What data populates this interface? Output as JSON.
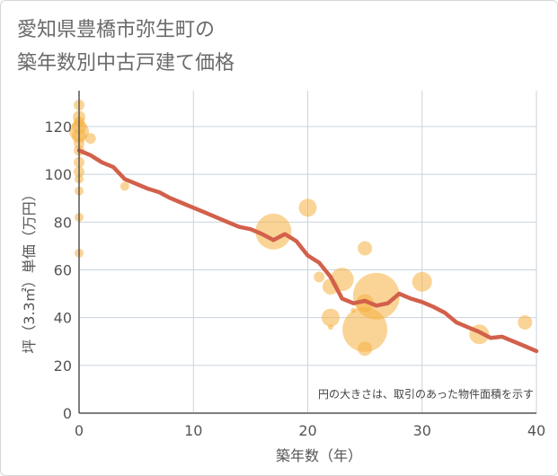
{
  "title_line1": "愛知県豊橋市弥生町の",
  "title_line2": "築年数別中古戸建て価格",
  "chart_data": {
    "type": "scatter",
    "title": "愛知県豊橋市弥生町の築年数別中古戸建て価格",
    "xlabel": "築年数（年）",
    "ylabel": "坪（3.3㎡）単価（万円）",
    "xlim": [
      0,
      40
    ],
    "ylim": [
      0,
      135
    ],
    "xticks": [
      0,
      10,
      20,
      30,
      40
    ],
    "yticks": [
      0,
      20,
      40,
      60,
      80,
      100,
      120
    ],
    "grid": true,
    "note": "円の大きさは、取引のあった物件面積を示す",
    "colors": {
      "bubble": "#f5b041",
      "trend": "#d2604b",
      "grid": "#c9d3de",
      "axis": "#555555"
    },
    "points": [
      {
        "x": 0,
        "y": 129,
        "s": 6
      },
      {
        "x": 0,
        "y": 124,
        "s": 7
      },
      {
        "x": 0,
        "y": 122,
        "s": 6
      },
      {
        "x": 0,
        "y": 120,
        "s": 8
      },
      {
        "x": 0,
        "y": 118,
        "s": 11
      },
      {
        "x": 0,
        "y": 116,
        "s": 8
      },
      {
        "x": 0,
        "y": 113,
        "s": 6
      },
      {
        "x": 0,
        "y": 110,
        "s": 6
      },
      {
        "x": 0,
        "y": 105,
        "s": 6
      },
      {
        "x": 0,
        "y": 101,
        "s": 6
      },
      {
        "x": 0,
        "y": 98,
        "s": 5
      },
      {
        "x": 0,
        "y": 93,
        "s": 5
      },
      {
        "x": 0,
        "y": 82,
        "s": 5
      },
      {
        "x": 0,
        "y": 67,
        "s": 5
      },
      {
        "x": 1,
        "y": 115,
        "s": 6
      },
      {
        "x": 4,
        "y": 95,
        "s": 5
      },
      {
        "x": 17,
        "y": 76,
        "s": 20
      },
      {
        "x": 20,
        "y": 86,
        "s": 10
      },
      {
        "x": 21,
        "y": 57,
        "s": 6
      },
      {
        "x": 22,
        "y": 53,
        "s": 9
      },
      {
        "x": 22,
        "y": 40,
        "s": 10
      },
      {
        "x": 22,
        "y": 36,
        "s": 3
      },
      {
        "x": 23,
        "y": 56,
        "s": 13
      },
      {
        "x": 24,
        "y": 43,
        "s": 3
      },
      {
        "x": 25,
        "y": 69,
        "s": 8
      },
      {
        "x": 25,
        "y": 46,
        "s": 10
      },
      {
        "x": 25,
        "y": 35,
        "s": 25
      },
      {
        "x": 25,
        "y": 27,
        "s": 8
      },
      {
        "x": 26,
        "y": 49,
        "s": 26
      },
      {
        "x": 30,
        "y": 55,
        "s": 11
      },
      {
        "x": 35,
        "y": 33,
        "s": 11
      },
      {
        "x": 39,
        "y": 38,
        "s": 8
      }
    ],
    "trend": [
      {
        "x": 0,
        "y": 110
      },
      {
        "x": 1,
        "y": 108
      },
      {
        "x": 2,
        "y": 105
      },
      {
        "x": 3,
        "y": 103
      },
      {
        "x": 4,
        "y": 98
      },
      {
        "x": 5,
        "y": 96
      },
      {
        "x": 6,
        "y": 94
      },
      {
        "x": 7,
        "y": 92.5
      },
      {
        "x": 8,
        "y": 90
      },
      {
        "x": 9,
        "y": 88
      },
      {
        "x": 10,
        "y": 86
      },
      {
        "x": 11,
        "y": 84
      },
      {
        "x": 12,
        "y": 82
      },
      {
        "x": 13,
        "y": 80
      },
      {
        "x": 14,
        "y": 78
      },
      {
        "x": 15,
        "y": 77
      },
      {
        "x": 16,
        "y": 75
      },
      {
        "x": 17,
        "y": 72.5
      },
      {
        "x": 18,
        "y": 75
      },
      {
        "x": 19,
        "y": 72
      },
      {
        "x": 20,
        "y": 66
      },
      {
        "x": 21,
        "y": 63
      },
      {
        "x": 22,
        "y": 57
      },
      {
        "x": 23,
        "y": 48
      },
      {
        "x": 24,
        "y": 46
      },
      {
        "x": 25,
        "y": 47
      },
      {
        "x": 26,
        "y": 45
      },
      {
        "x": 27,
        "y": 46
      },
      {
        "x": 28,
        "y": 50
      },
      {
        "x": 29,
        "y": 48
      },
      {
        "x": 30,
        "y": 46.5
      },
      {
        "x": 31,
        "y": 44.5
      },
      {
        "x": 32,
        "y": 42
      },
      {
        "x": 33,
        "y": 38
      },
      {
        "x": 34,
        "y": 36
      },
      {
        "x": 35,
        "y": 34
      },
      {
        "x": 36,
        "y": 31.5
      },
      {
        "x": 37,
        "y": 32
      },
      {
        "x": 38,
        "y": 30
      },
      {
        "x": 39,
        "y": 28
      },
      {
        "x": 40,
        "y": 26
      }
    ]
  }
}
